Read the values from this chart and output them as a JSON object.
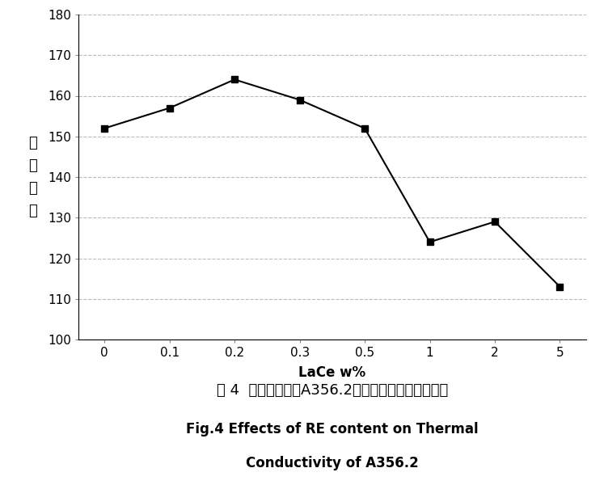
{
  "x_values": [
    0,
    0.1,
    0.2,
    0.3,
    0.5,
    1,
    2,
    5
  ],
  "y_values": [
    152,
    157,
    164,
    159,
    152,
    124,
    129,
    113
  ],
  "x_tick_labels": [
    "0",
    "0.1",
    "0.2",
    "0.3",
    "0.5",
    "1",
    "2",
    "5"
  ],
  "xlabel": "LaCe w%",
  "ylabel_chars": [
    "导",
    "热",
    "系",
    "数"
  ],
  "ylim": [
    100,
    180
  ],
  "yticks": [
    100,
    110,
    120,
    130,
    140,
    150,
    160,
    170,
    180
  ],
  "title_chinese": "图 4  稀土加入量对A356.2铝合金导热系数的影响。",
  "title_english_line1": "Fig.4 Effects of RE content on Thermal",
  "title_english_line2": "Conductivity of A356.2",
  "line_color": "#000000",
  "marker": "s",
  "marker_size": 6,
  "marker_facecolor": "#000000",
  "grid_color": "#bbbbbb",
  "grid_linestyle": "--",
  "background_color": "#ffffff",
  "title_fontsize_chinese": 13,
  "title_fontsize_english": 12,
  "xlabel_fontsize": 12,
  "ylabel_fontsize": 13,
  "tick_fontsize": 11
}
